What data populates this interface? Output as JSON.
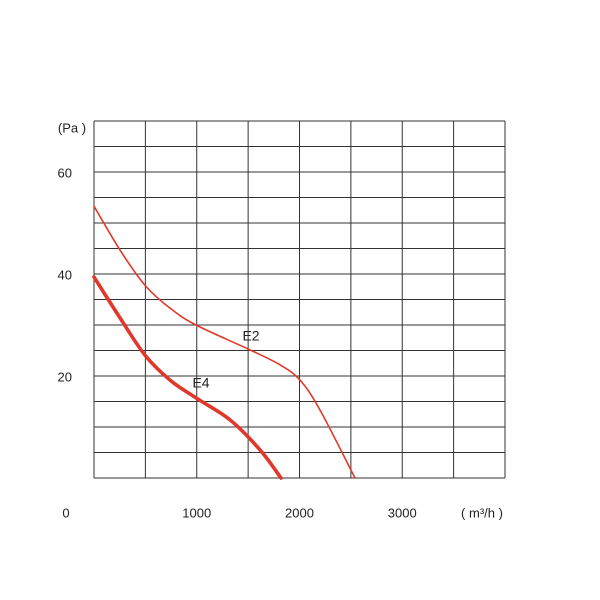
{
  "chart_data": {
    "type": "line",
    "y_unit": "(Pa )",
    "x_unit": "( m³/h )",
    "xlim": [
      0,
      4000
    ],
    "ylim": [
      0,
      70
    ],
    "xticks": [
      0,
      1000,
      2000,
      3000
    ],
    "yticks": [
      20,
      40,
      60
    ],
    "grid_x_step": 500,
    "grid_y_step": 5,
    "grid": true,
    "series": [
      {
        "name": "E2",
        "color": "#e0392b",
        "x": [
          0,
          253,
          496,
          740,
          993,
          1499,
          1810,
          2005,
          2200,
          2540
        ],
        "values": [
          53.3,
          44.7,
          37.8,
          33.3,
          30,
          25.3,
          22.2,
          19.2,
          13.3,
          0
        ]
      },
      {
        "name": "E4",
        "color": "#e0392b",
        "x": [
          0,
          253,
          496,
          740,
          993,
          1324,
          1616,
          1820
        ],
        "values": [
          39.4,
          31.4,
          24.1,
          19.2,
          15.7,
          11.4,
          5.5,
          0
        ]
      }
    ]
  }
}
